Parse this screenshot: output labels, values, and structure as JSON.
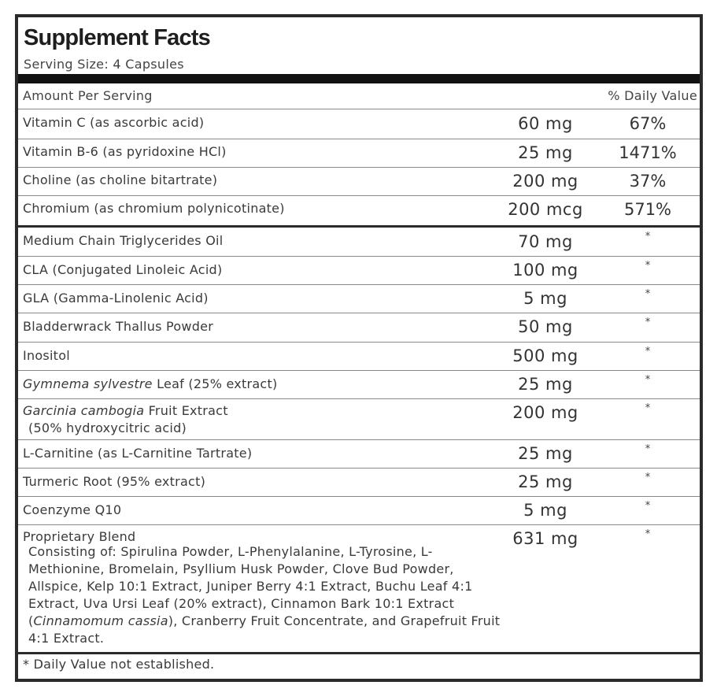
{
  "title": "Supplement Facts",
  "serving_size": "Serving Size: 4 Capsules",
  "header": {
    "amount_per_serving": "Amount Per Serving",
    "daily_value": "% Daily Value"
  },
  "vitamins": [
    {
      "name": "Vitamin C (as ascorbic acid)",
      "amount": "60 mg",
      "dv": "67%"
    },
    {
      "name": "Vitamin B-6 (as pyridoxine HCl)",
      "amount": "25 mg",
      "dv": "1471%"
    },
    {
      "name": "Choline (as choline bitartrate)",
      "amount": "200 mg",
      "dv": "37%"
    },
    {
      "name": "Chromium (as chromium polynicotinate)",
      "amount": "200 mcg",
      "dv": "571%"
    }
  ],
  "other": [
    {
      "name": "Medium Chain Triglycerides Oil",
      "amount": "70 mg",
      "dv": "*"
    },
    {
      "name": "CLA (Conjugated Linoleic Acid)",
      "amount": "100 mg",
      "dv": "*"
    },
    {
      "name": "GLA (Gamma-Linolenic Acid)",
      "amount": "5 mg",
      "dv": "*"
    },
    {
      "name": "Bladderwrack Thallus Powder",
      "amount": "50 mg",
      "dv": "*"
    },
    {
      "name": "Inositol",
      "amount": "500 mg",
      "dv": "*"
    },
    {
      "name_italic": "Gymnema sylvestre",
      "name_rest": " Leaf (25% extract)",
      "amount": "25 mg",
      "dv": "*"
    },
    {
      "name_italic": "Garcinia cambogia",
      "name_rest": " Fruit Extract",
      "name_line2": "(50% hydroxycitric acid)",
      "amount": "200 mg",
      "dv": "*"
    },
    {
      "name": "L-Carnitine (as L-Carnitine Tartrate)",
      "amount": "25 mg",
      "dv": "*"
    },
    {
      "name": "Turmeric Root (95% extract)",
      "amount": "25 mg",
      "dv": "*"
    },
    {
      "name": "Coenzyme Q10",
      "amount": "5 mg",
      "dv": "*"
    }
  ],
  "blend": {
    "name": "Proprietary Blend",
    "amount": "631 mg",
    "dv": "*",
    "text_a": "Consisting of: Spirulina Powder, L-Phenylalanine, L-Tyrosine, L-Methionine, Bromelain, Psyllium Husk Powder, Clove Bud Powder, Allspice, Kelp 10:1 Extract, Juniper Berry 4:1 Extract, Buchu Leaf 4:1 Extract, Uva Ursi Leaf (20% extract), Cinnamon Bark 10:1 Extract (",
    "text_italic": "Cinnamomum cassia",
    "text_b": "), Cranberry Fruit Concentrate, and Grapefruit Fruit 4:1 Extract."
  },
  "footnote": "* Daily Value not established."
}
